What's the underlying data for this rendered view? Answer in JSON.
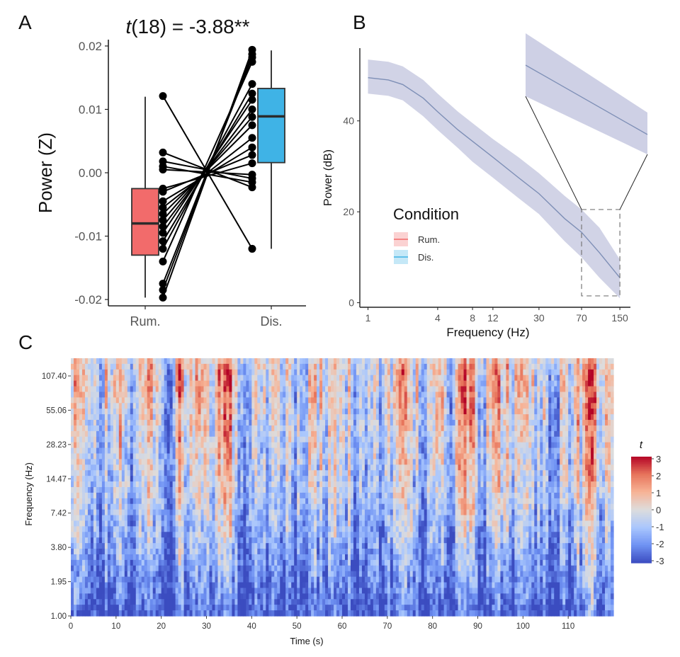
{
  "panels": {
    "a": "A",
    "b": "B",
    "c": "C"
  },
  "chart_data": [
    {
      "type": "boxplot",
      "panel": "A",
      "title": "t(18) = -3.88**",
      "title_italic": "t",
      "title_rest": "(18) = -3.88**",
      "xlabel": "",
      "ylabel": "Power (Z)",
      "ylim": [
        -0.021,
        0.021
      ],
      "yticks": [
        0.02,
        0.01,
        0.0,
        -0.01,
        -0.02
      ],
      "ytick_labels": [
        "0.02",
        "0.01",
        "0.00",
        "-0.01",
        "-0.02"
      ],
      "categories": [
        "Rum.",
        "Dis."
      ],
      "colors": [
        "#f26b6b",
        "#3fb3e6"
      ],
      "boxes": [
        {
          "name": "Rum.",
          "whisker_low": -0.0197,
          "q1": -0.013,
          "median": -0.008,
          "q3": -0.0025,
          "whisker_high": 0.012
        },
        {
          "name": "Dis.",
          "whisker_low": -0.012,
          "q1": 0.0016,
          "median": 0.0089,
          "q3": 0.0133,
          "whisker_high": 0.0193
        }
      ],
      "paired_points": [
        [
          0.0121,
          -0.012
        ],
        [
          0.0032,
          -0.0023
        ],
        [
          0.0018,
          -0.0009
        ],
        [
          0.001,
          -0.0015
        ],
        [
          0.0005,
          -0.0003
        ],
        [
          -0.0025,
          0.0015
        ],
        [
          -0.003,
          0.0028
        ],
        [
          -0.0045,
          0.004
        ],
        [
          -0.0055,
          0.0055
        ],
        [
          -0.0065,
          0.0075
        ],
        [
          -0.0075,
          0.0088
        ],
        [
          -0.0085,
          0.01
        ],
        [
          -0.0095,
          0.0115
        ],
        [
          -0.0108,
          0.0125
        ],
        [
          -0.012,
          0.014
        ],
        [
          -0.014,
          0.0175
        ],
        [
          -0.0175,
          0.0182
        ],
        [
          -0.0185,
          0.0187
        ],
        [
          -0.0197,
          0.0194
        ]
      ]
    },
    {
      "type": "line",
      "panel": "B",
      "xlabel": "Frequency (Hz)",
      "ylabel": "Power (dB)",
      "xscale": "log",
      "xlim": [
        0.85,
        185
      ],
      "ylim": [
        -1,
        56
      ],
      "xticks": [
        1,
        4,
        8,
        12,
        30,
        70,
        150
      ],
      "xtick_labels": [
        "1",
        "4",
        "8",
        "12",
        "30",
        "70",
        "150"
      ],
      "yticks": [
        0,
        20,
        40
      ],
      "ytick_labels": [
        "0",
        "20",
        "40"
      ],
      "legend_title": "Condition",
      "legend_position": "center-left",
      "series": [
        {
          "name": "Rum.",
          "color": "#f26b6b"
        },
        {
          "name": "Dis.",
          "color": "#3fb3e6"
        }
      ],
      "band_color": "#c9cbe2",
      "line_color": "#7e8fb6",
      "x": [
        1,
        1.5,
        2,
        3,
        4,
        6,
        8,
        12,
        20,
        30,
        50,
        70,
        100,
        150
      ],
      "mean": [
        49.5,
        49.0,
        48.0,
        45.0,
        42.0,
        38.0,
        35.5,
        32.0,
        27.5,
        24.0,
        18.5,
        15.5,
        11.0,
        5.5
      ],
      "lower": [
        46.0,
        45.5,
        44.5,
        41.0,
        38.0,
        34.0,
        31.0,
        27.5,
        23.0,
        19.5,
        13.5,
        10.0,
        5.5,
        1.0
      ],
      "upper": [
        53.5,
        53.0,
        52.0,
        49.0,
        46.0,
        42.0,
        39.5,
        36.0,
        32.0,
        28.5,
        23.5,
        20.5,
        16.5,
        9.5
      ],
      "zoom_region": {
        "x": [
          70,
          150
        ],
        "y": [
          1.5,
          20.5
        ]
      }
    },
    {
      "type": "heatmap",
      "panel": "C",
      "xlabel": "Time (s)",
      "ylabel": "Frequency (Hz)",
      "xlim": [
        0,
        120
      ],
      "xticks": [
        0,
        10,
        20,
        30,
        40,
        50,
        60,
        70,
        80,
        90,
        100,
        110
      ],
      "xtick_labels": [
        "0",
        "10",
        "20",
        "30",
        "40",
        "50",
        "60",
        "70",
        "80",
        "90",
        "100",
        "110"
      ],
      "ytick_labels": [
        "1.00",
        "1.95",
        "3.80",
        "7.42",
        "14.47",
        "28.23",
        "55.06",
        "107.40"
      ],
      "yscale": "log",
      "ylim": [
        1.0,
        150
      ],
      "colorbar_title": "t",
      "colorbar_ticks": [
        "3",
        "2",
        "1",
        "0",
        "-1",
        "-2",
        "-3"
      ],
      "color_range": [
        -3,
        3
      ],
      "colormap": [
        "#3b4cc0",
        "#6f92f3",
        "#aac7fd",
        "#dddcdc",
        "#f7b396",
        "#e7745b",
        "#b40426"
      ]
    }
  ]
}
